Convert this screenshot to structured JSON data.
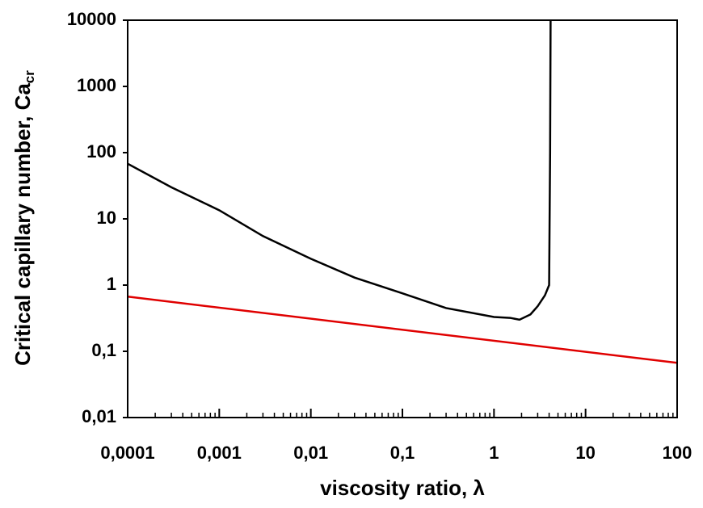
{
  "chart_data": {
    "type": "line",
    "xlabel": "viscosity ratio, λ",
    "ylabel": "Critical capillary number, Ca",
    "ylabel_subscript": "cr",
    "xscale": "log",
    "yscale": "log",
    "xlim": [
      0.0001,
      100
    ],
    "ylim": [
      0.01,
      10000
    ],
    "xticks": [
      {
        "value": 0.0001,
        "label": "0,0001"
      },
      {
        "value": 0.001,
        "label": "0,001"
      },
      {
        "value": 0.01,
        "label": "0,01"
      },
      {
        "value": 0.1,
        "label": "0,1"
      },
      1,
      10,
      100
    ],
    "yticks": [
      {
        "value": 0.01,
        "label": "0,01"
      },
      {
        "value": 0.1,
        "label": "0,1"
      },
      1,
      10,
      100,
      1000,
      10000
    ],
    "series": [
      {
        "color": "#000000",
        "x": [
          0.0001,
          0.0003,
          0.001,
          0.003,
          0.01,
          0.03,
          0.1,
          0.3,
          1,
          1.5,
          1.9,
          2.5,
          3,
          3.6,
          4,
          4.1,
          4.15
        ],
        "values": [
          68,
          30,
          13.5,
          5.5,
          2.5,
          1.3,
          0.75,
          0.45,
          0.33,
          0.32,
          0.3,
          0.36,
          0.48,
          0.7,
          1.0,
          100,
          10000
        ]
      },
      {
        "color": "#e00000",
        "x": [
          0.0001,
          100
        ],
        "values": [
          0.67,
          0.067
        ]
      }
    ]
  }
}
